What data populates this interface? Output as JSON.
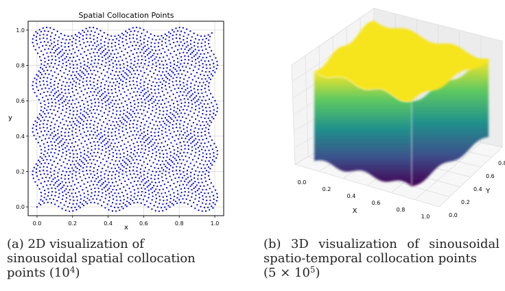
{
  "chart_data": [
    {
      "type": "scatter",
      "title": "Spatial Collocation Points",
      "xlabel": "x",
      "ylabel": "y",
      "xlim": [
        -0.05,
        1.05
      ],
      "ylim": [
        -0.05,
        1.05
      ],
      "xticks": [
        "0.0",
        "0.2",
        "0.4",
        "0.6",
        "0.8",
        "1.0"
      ],
      "yticks": [
        "0.0",
        "0.2",
        "0.4",
        "0.6",
        "0.8",
        "1.0"
      ],
      "grid": true,
      "point_color": "#0000dd",
      "grid_points": 100,
      "wave": {
        "amplitude": 0.025,
        "frequency": 4
      }
    },
    {
      "type": "3d-surface",
      "xlabel": "X",
      "ylabel": "Y",
      "xticks": [
        "0.0",
        "0.2",
        "0.4",
        "0.6",
        "0.8",
        "1.0"
      ],
      "yticks": [
        "0.0",
        "0.2",
        "0.4",
        "0.6",
        "0.8"
      ],
      "colormap": "viridis",
      "colormap_stops": [
        "#440154",
        "#3b528b",
        "#21918c",
        "#5ec962",
        "#fde725"
      ]
    }
  ],
  "captions": {
    "a": {
      "text": "(a) 2D visualization of sinousoidal spatial collocation points (10",
      "sup": "4",
      "end": ")"
    },
    "b": {
      "line1": "(b) 3D visualization of sinousoidal spatio-temporal collocation points",
      "pre": "(5 × 10",
      "sup": "5",
      "end": ")"
    }
  }
}
